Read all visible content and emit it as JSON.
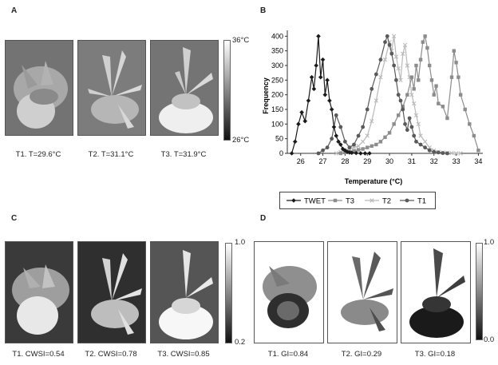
{
  "panels": {
    "a": {
      "letter": "A",
      "captions": [
        "T1. T=29.6°C",
        "T2. T=31.1°C",
        "T3. T=31.9°C"
      ],
      "scale": {
        "top": "36°C",
        "bottom": "26°C"
      }
    },
    "b": {
      "letter": "B"
    },
    "c": {
      "letter": "C",
      "captions": [
        "T1. CWSI=0.54",
        "T2. CWSI=0.78",
        "T3. CWSI=0.85"
      ],
      "scale": {
        "top": "1.0",
        "bottom": "0.2"
      }
    },
    "d": {
      "letter": "D",
      "captions": [
        "T1. GI=0.84",
        "T2. GI=0.29",
        "T3. GI=0.18"
      ],
      "scale": {
        "top": "1.0",
        "bottom": "0.0"
      }
    }
  },
  "chart_data": {
    "type": "line",
    "xlabel": "Temperature (°C)",
    "ylabel": "Frequency",
    "xlim": [
      25.4,
      34.2
    ],
    "ylim": [
      0,
      420
    ],
    "xticks": [
      "26",
      "27",
      "28",
      "29",
      "30",
      "31",
      "32",
      "33",
      "34"
    ],
    "yticks": [
      "0",
      "50",
      "100",
      "150",
      "200",
      "250",
      "300",
      "350",
      "400"
    ],
    "grid": false,
    "legend_position": "bottom",
    "series": [
      {
        "name": "TWET",
        "color": "#1a1a1a",
        "marker": "diamond",
        "x": [
          25.6,
          25.75,
          25.9,
          26.05,
          26.2,
          26.35,
          26.5,
          26.6,
          26.7,
          26.8,
          26.9,
          27.0,
          27.1,
          27.2,
          27.3,
          27.4,
          27.5,
          27.6,
          27.7,
          27.8,
          27.9,
          28.0,
          28.1,
          28.2,
          28.3,
          28.5,
          28.7,
          28.9,
          29.1
        ],
        "y": [
          0,
          40,
          100,
          140,
          110,
          180,
          260,
          220,
          300,
          400,
          260,
          320,
          200,
          250,
          180,
          150,
          90,
          60,
          40,
          30,
          15,
          10,
          5,
          3,
          2,
          1,
          0,
          0,
          0
        ]
      },
      {
        "name": "T3",
        "color": "#8c8c8c",
        "marker": "square",
        "x": [
          27.8,
          28.0,
          28.2,
          28.4,
          28.6,
          28.8,
          29.0,
          29.2,
          29.4,
          29.6,
          29.8,
          30.0,
          30.2,
          30.4,
          30.6,
          30.8,
          31.0,
          31.1,
          31.2,
          31.3,
          31.4,
          31.5,
          31.6,
          31.7,
          31.8,
          31.9,
          32.0,
          32.1,
          32.2,
          32.4,
          32.6,
          32.8,
          32.9,
          33.0,
          33.1,
          33.2,
          33.4,
          33.6,
          33.8,
          34.0
        ],
        "y": [
          0,
          3,
          5,
          8,
          12,
          15,
          20,
          25,
          30,
          40,
          55,
          70,
          100,
          130,
          160,
          200,
          260,
          220,
          300,
          250,
          320,
          380,
          400,
          360,
          300,
          250,
          200,
          230,
          170,
          160,
          120,
          260,
          350,
          310,
          260,
          200,
          150,
          100,
          60,
          10
        ]
      },
      {
        "name": "T2",
        "color": "#b9b9b9",
        "marker": "x",
        "x": [
          27.6,
          27.8,
          28.0,
          28.2,
          28.4,
          28.6,
          28.8,
          29.0,
          29.2,
          29.4,
          29.6,
          29.8,
          30.0,
          30.1,
          30.2,
          30.3,
          30.4,
          30.5,
          30.6,
          30.7,
          30.8,
          30.9,
          31.0,
          31.1,
          31.2,
          31.3,
          31.4,
          31.6,
          31.8,
          32.0,
          32.2,
          32.4,
          32.6,
          32.8,
          33.0,
          33.2
        ],
        "y": [
          0,
          5,
          10,
          15,
          20,
          25,
          40,
          60,
          110,
          180,
          260,
          320,
          380,
          350,
          400,
          330,
          290,
          250,
          340,
          370,
          300,
          260,
          200,
          170,
          130,
          100,
          60,
          40,
          20,
          10,
          5,
          3,
          2,
          1,
          0,
          0
        ]
      },
      {
        "name": "T1",
        "color": "#5a5a5a",
        "marker": "circle",
        "x": [
          26.8,
          27.0,
          27.2,
          27.4,
          27.6,
          27.8,
          28.0,
          28.2,
          28.4,
          28.6,
          28.8,
          29.0,
          29.2,
          29.4,
          29.6,
          29.8,
          29.9,
          30.0,
          30.1,
          30.2,
          30.3,
          30.4,
          30.5,
          30.6,
          30.7,
          30.8,
          30.9,
          31.0,
          31.1,
          31.2,
          31.4,
          31.6,
          31.8,
          32.0,
          32.2,
          32.4,
          32.6
        ],
        "y": [
          0,
          10,
          20,
          50,
          130,
          90,
          40,
          20,
          30,
          60,
          90,
          150,
          220,
          270,
          320,
          380,
          400,
          370,
          340,
          300,
          250,
          200,
          180,
          150,
          100,
          80,
          120,
          90,
          60,
          40,
          30,
          20,
          10,
          5,
          3,
          1,
          0
        ]
      }
    ]
  }
}
